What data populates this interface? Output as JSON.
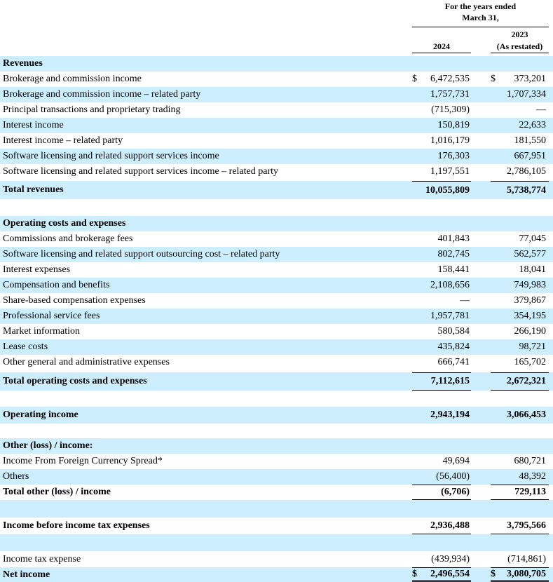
{
  "header": {
    "period": [
      "For the years ended",
      "March 31,"
    ],
    "columns": [
      {
        "year": "2024"
      },
      {
        "year": "2023",
        "note": "(As restated)"
      }
    ]
  },
  "rows": [
    {
      "label": "Revenues"
    },
    {
      "label": "Brokerage and commission income",
      "values": [
        {
          "currency": "$",
          "amount": "6,472,535"
        },
        {
          "currency": "$",
          "amount": "373,201"
        }
      ]
    },
    {
      "label": "Brokerage and commission income – related party",
      "values": [
        "1,757,731",
        "1,707,334"
      ]
    },
    {
      "label": "Principal transactions and proprietary trading",
      "values": [
        "(715,309)",
        "—"
      ]
    },
    {
      "label": "Interest income",
      "values": [
        "150,819",
        "22,633"
      ]
    },
    {
      "label": "Interest income – related party",
      "values": [
        "1,016,179",
        "181,550"
      ]
    },
    {
      "label": "Software licensing and related support services income",
      "values": [
        "176,303",
        "667,951"
      ]
    },
    {
      "label": "Software licensing and related support services income – related party",
      "values": [
        "1,197,551",
        "2,786,105"
      ]
    },
    {
      "label": "Total revenues",
      "values": [
        "10,055,809",
        "5,738,774"
      ]
    },
    {
      "label": "Operating costs and expenses"
    },
    {
      "label": "Commissions and brokerage fees",
      "values": [
        "401,843",
        "77,045"
      ]
    },
    {
      "label": "Software licensing and related support outsourcing cost – related party",
      "values": [
        "802,745",
        "562,577"
      ]
    },
    {
      "label": "Interest expenses",
      "values": [
        "158,441",
        "18,041"
      ]
    },
    {
      "label": "Compensation and benefits",
      "values": [
        "2,108,656",
        "749,983"
      ]
    },
    {
      "label": "Share-based compensation expenses",
      "values": [
        "—",
        "379,867"
      ]
    },
    {
      "label": "Professional service fees",
      "values": [
        "1,957,781",
        "354,195"
      ]
    },
    {
      "label": "Market information",
      "values": [
        "580,584",
        "266,190"
      ]
    },
    {
      "label": "Lease costs",
      "values": [
        "435,824",
        "98,721"
      ]
    },
    {
      "label": "Other general and administrative expenses",
      "values": [
        "666,741",
        "165,702"
      ]
    },
    {
      "label": "Total operating costs and expenses",
      "values": [
        "7,112,615",
        "2,672,321"
      ]
    },
    {
      "label": "Operating income",
      "values": [
        "2,943,194",
        "3,066,453"
      ]
    },
    {
      "label": "Other (loss) / income:"
    },
    {
      "label": "Income From Foreign Currency Spread*",
      "values": [
        "49,694",
        "680,721"
      ]
    },
    {
      "label": "Others",
      "values": [
        "(56,400)",
        "48,392"
      ]
    },
    {
      "label": "Total other (loss) / income",
      "values": [
        "(6,706)",
        "729,113"
      ]
    },
    {
      "label": "Income before income tax expenses",
      "values": [
        "2,936,488",
        "3,795,566"
      ]
    },
    {
      "label": "Income tax expense",
      "values": [
        "(439,934)",
        "(714,861)"
      ]
    },
    {
      "label": "Net income",
      "values": [
        {
          "currency": "$",
          "amount": "2,496,554"
        },
        {
          "currency": "$",
          "amount": "3,080,705"
        }
      ]
    }
  ]
}
